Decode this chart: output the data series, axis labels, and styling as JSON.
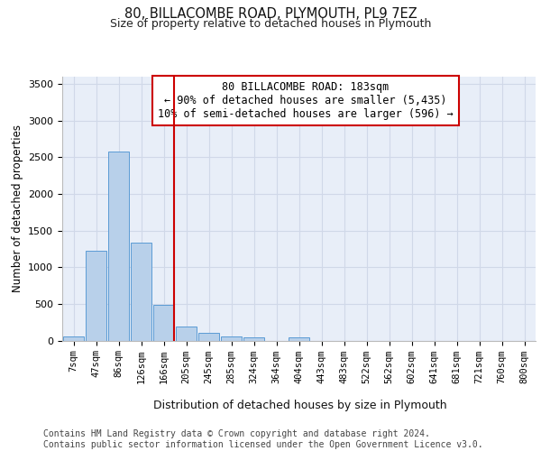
{
  "title1": "80, BILLACOMBE ROAD, PLYMOUTH, PL9 7EZ",
  "title2": "Size of property relative to detached houses in Plymouth",
  "xlabel": "Distribution of detached houses by size in Plymouth",
  "ylabel": "Number of detached properties",
  "bin_labels": [
    "7sqm",
    "47sqm",
    "86sqm",
    "126sqm",
    "166sqm",
    "205sqm",
    "245sqm",
    "285sqm",
    "324sqm",
    "364sqm",
    "404sqm",
    "443sqm",
    "483sqm",
    "522sqm",
    "562sqm",
    "602sqm",
    "641sqm",
    "681sqm",
    "721sqm",
    "760sqm",
    "800sqm"
  ],
  "bar_values": [
    55,
    1220,
    2575,
    1335,
    490,
    185,
    105,
    50,
    40,
    0,
    40,
    0,
    0,
    0,
    0,
    0,
    0,
    0,
    0,
    0,
    0
  ],
  "bar_color": "#b8d0ea",
  "bar_edge_color": "#5b9bd5",
  "grid_color": "#d0d8e8",
  "background_color": "#e8eef8",
  "vline_x_idx": 4.45,
  "vline_color": "#cc0000",
  "annotation_line1": "80 BILLACOMBE ROAD: 183sqm",
  "annotation_line2": "← 90% of detached houses are smaller (5,435)",
  "annotation_line3": "10% of semi-detached houses are larger (596) →",
  "annotation_box_edgecolor": "#cc0000",
  "ylim": [
    0,
    3600
  ],
  "yticks": [
    0,
    500,
    1000,
    1500,
    2000,
    2500,
    3000,
    3500
  ],
  "footer_line1": "Contains HM Land Registry data © Crown copyright and database right 2024.",
  "footer_line2": "Contains public sector information licensed under the Open Government Licence v3.0.",
  "title1_fontsize": 10.5,
  "title2_fontsize": 9,
  "xlabel_fontsize": 9,
  "ylabel_fontsize": 8.5,
  "tick_fontsize": 7.5,
  "ytick_fontsize": 8,
  "annotation_fontsize": 8.5,
  "footer_fontsize": 7
}
